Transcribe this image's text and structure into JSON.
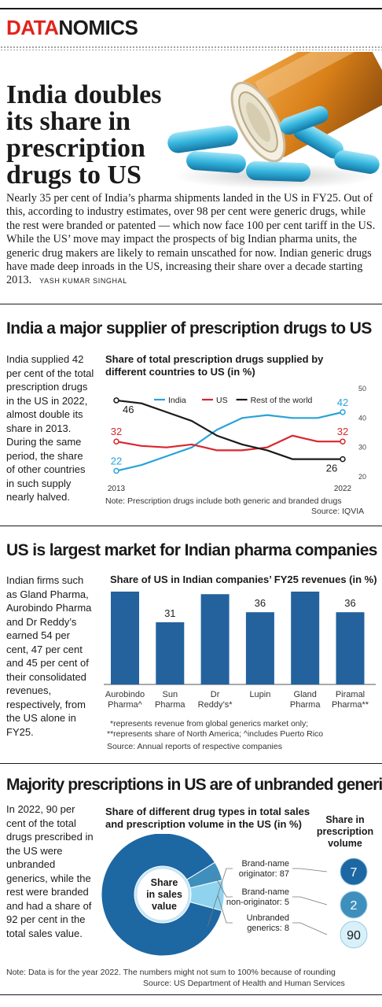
{
  "brand": {
    "part1": "DATA",
    "part2": "NOMICS"
  },
  "headline": "India doubles its share in prescription drugs to US",
  "intro": "Nearly 35 per cent of India’s pharma shipments landed in the US in FY25. Out of this, according to industry estimates, over 98 per cent were generic drugs, while the rest were branded or patented — which now face 100 per cent tariff in the US. While the US’ move may impact the prospects of big Indian pharma units, the generic drug makers are likely to remain unscathed for now. Indian generic drugs have made deep inroads in the US, increasing their share over a decade starting 2013.",
  "byline": "YASH KUMAR SINGHAL",
  "section1": {
    "title": "India a major supplier of prescription drugs to US",
    "side_text": "India supplied 42 per cent of the total prescription drugs in the US in 2022, almost double its share in 2013. During the same period, the share of other countries in such supply nearly halved.",
    "chart_title": "Share of total prescription drugs supplied by different countries to US (in %)",
    "note": "Note: Prescription drugs include both generic and branded drugs",
    "source": "Source: IQVIA"
  },
  "section2": {
    "title": "US is largest market for Indian pharma companies",
    "side_text": "Indian firms such as Gland Pharma, Aurobindo Pharma and Dr Reddy’s earned 54 per cent, 47 per cent and 45 per cent of their consolidated revenues, respectively, from the US alone in FY25.",
    "chart_title": "Share of US in Indian companies’ FY25 revenues (in %)",
    "footnote1": "*represents revenue from global generics market only;",
    "footnote2": "**represents share of North America; ^includes Puerto Rico",
    "source": "Source: Annual reports of respective companies"
  },
  "section3": {
    "title": "Majority prescriptions in US are of unbranded generics",
    "side_text": "In 2022, 90 per cent of the total drugs prescribed in the US were unbranded generics, while the rest were branded and had a share of 92 per cent in the total sales value.",
    "chart_title": "Share of different drug types in total sales and prescription volume in the US (in %)",
    "right_header": "Share in prescription volume",
    "center_label": "Share in sales value",
    "note": "Note: Data is for the year 2022. The numbers might not sum to 100% because of rounding",
    "source": "Source: US Department of Health and Human Services"
  },
  "colors": {
    "india": "#29a3d8",
    "us": "#d9262d",
    "row": "#1a1a1a",
    "bar": "#23629d",
    "brand_red": "#e2231a"
  },
  "chart_data": [
    {
      "type": "line",
      "title": "Share of total prescription drugs supplied by different countries to US (in %)",
      "x": [
        2013,
        2014,
        2015,
        2016,
        2017,
        2018,
        2019,
        2020,
        2021,
        2022
      ],
      "x_tick_labels": [
        "2013",
        "2022"
      ],
      "ylim": [
        20,
        50
      ],
      "y_ticks": [
        20,
        30,
        40,
        50
      ],
      "legend_position": "top",
      "series": [
        {
          "name": "India",
          "color": "#29a3d8",
          "values": [
            22,
            24,
            27,
            30,
            36,
            40,
            41,
            40,
            40,
            42
          ]
        },
        {
          "name": "US",
          "color": "#d9262d",
          "values": [
            32,
            30.5,
            30,
            31,
            29,
            29,
            30,
            34,
            32,
            32
          ]
        },
        {
          "name": "Rest of the world",
          "color": "#1a1a1a",
          "values": [
            46,
            45,
            42,
            39,
            34,
            31,
            29,
            26,
            26,
            26
          ]
        }
      ],
      "end_labels": {
        "start": [
          22,
          32,
          46
        ],
        "end": [
          42,
          32,
          26
        ]
      },
      "note": "Note: Prescription drugs include both generic and branded drugs",
      "source": "Source: IQVIA"
    },
    {
      "type": "bar",
      "title": "Share of US in Indian companies’ FY25 revenues (in %)",
      "categories": [
        "Aurobindo Pharma^",
        "Sun Pharma",
        "Dr Reddy’s*",
        "Lupin",
        "Gland Pharma",
        "Piramal Pharma**"
      ],
      "category_lines": [
        [
          "Aurobindo",
          "Pharma^"
        ],
        [
          "Sun",
          "Pharma"
        ],
        [
          "Dr",
          "Reddy’s*"
        ],
        [
          "Lupin"
        ],
        [
          "Gland",
          "Pharma"
        ],
        [
          "Piramal",
          "Pharma**"
        ]
      ],
      "values": [
        47,
        31,
        45,
        36,
        54,
        36
      ],
      "color": "#23629d"
    },
    {
      "type": "pie",
      "title": "Share of different drug types in total sales and prescription volume in the US (in %)",
      "slices": [
        {
          "label_lines": [
            "Brand-name",
            "originator: 87"
          ],
          "sales_share": 87,
          "prescription_share": 7,
          "color": "#1d67a3"
        },
        {
          "label_lines": [
            "Brand-name",
            "non-originator: 5"
          ],
          "sales_share": 5,
          "prescription_share": 2,
          "color": "#3f8fbd"
        },
        {
          "label_lines": [
            "Unbranded",
            "generics: 8"
          ],
          "sales_share": 8,
          "prescription_share": 90,
          "color": "#8fd3ef"
        }
      ]
    }
  ]
}
